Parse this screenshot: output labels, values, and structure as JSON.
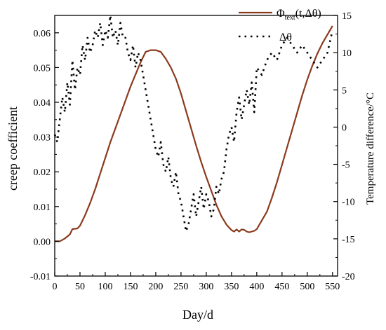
{
  "chart_data": {
    "type": "line",
    "xlabel": "Day/d",
    "ylabel": "creep coefficient",
    "ylabel_right": "Temperature difference/°C",
    "xlim": [
      0,
      560
    ],
    "ylim": [
      -0.01,
      0.065
    ],
    "ylim_right": [
      -20,
      15
    ],
    "x_ticks": [
      0,
      50,
      100,
      150,
      200,
      250,
      300,
      350,
      400,
      450,
      500,
      550
    ],
    "y_ticks": [
      -0.01,
      0.0,
      0.01,
      0.02,
      0.03,
      0.04,
      0.05,
      0.06
    ],
    "y_tick_labels": [
      "-0.01",
      "0.00",
      "0.01",
      "0.02",
      "0.03",
      "0.04",
      "0.05",
      "0.06"
    ],
    "y_right_ticks": [
      -20,
      -15,
      -10,
      -5,
      0,
      5,
      10,
      15
    ],
    "legend_position": "top-right",
    "grid": false,
    "series": [
      {
        "name": "Φ",
        "name_sub": "text",
        "name_suffix": "(t,Δθ)",
        "style": "solid",
        "color": "#8B3A1E",
        "axis": "left",
        "x": [
          0,
          10,
          20,
          30,
          35,
          45,
          50,
          55,
          60,
          70,
          80,
          90,
          100,
          110,
          120,
          130,
          140,
          150,
          160,
          170,
          180,
          190,
          200,
          210,
          220,
          230,
          240,
          250,
          260,
          270,
          280,
          290,
          300,
          310,
          320,
          330,
          340,
          350,
          355,
          360,
          365,
          370,
          375,
          380,
          385,
          390,
          395,
          400,
          410,
          420,
          430,
          440,
          450,
          460,
          470,
          480,
          490,
          500,
          510,
          520,
          530,
          540,
          550
        ],
        "y": [
          0.0,
          0.0,
          0.0008,
          0.002,
          0.0035,
          0.0037,
          0.0045,
          0.006,
          0.0075,
          0.011,
          0.015,
          0.0195,
          0.024,
          0.0285,
          0.0325,
          0.0365,
          0.0405,
          0.0445,
          0.048,
          0.0515,
          0.0545,
          0.055,
          0.055,
          0.0545,
          0.0525,
          0.05,
          0.0468,
          0.0425,
          0.0375,
          0.0325,
          0.0275,
          0.0228,
          0.0185,
          0.0145,
          0.0105,
          0.0072,
          0.0048,
          0.0032,
          0.0028,
          0.0034,
          0.0028,
          0.0034,
          0.0033,
          0.0028,
          0.0026,
          0.0028,
          0.003,
          0.0035,
          0.006,
          0.0085,
          0.0125,
          0.017,
          0.022,
          0.027,
          0.032,
          0.037,
          0.042,
          0.0465,
          0.0505,
          0.054,
          0.057,
          0.0595,
          0.062
        ]
      },
      {
        "name": "Δθ",
        "style": "dotted",
        "color": "#000000",
        "axis": "right",
        "x": [
          0,
          5,
          10,
          15,
          20,
          25,
          30,
          35,
          40,
          45,
          50,
          55,
          60,
          65,
          70,
          75,
          80,
          85,
          90,
          95,
          100,
          105,
          110,
          115,
          120,
          125,
          130,
          135,
          140,
          145,
          150,
          155,
          160,
          165,
          170,
          175,
          180,
          185,
          190,
          195,
          200,
          205,
          210,
          215,
          220,
          225,
          230,
          235,
          240,
          245,
          250,
          255,
          260,
          265,
          270,
          275,
          280,
          285,
          290,
          295,
          300,
          305,
          310,
          315,
          320,
          325,
          330,
          335,
          340,
          345,
          350,
          355,
          360,
          365,
          370,
          375,
          380,
          385,
          390,
          395,
          400,
          410,
          420,
          430,
          440,
          450,
          460,
          470,
          480,
          490,
          500,
          510,
          520,
          530,
          540,
          550
        ],
        "y": [
          -1,
          -2,
          1,
          4,
          2,
          6,
          3,
          9,
          5,
          8,
          7,
          11,
          9,
          12,
          10,
          11,
          13,
          12,
          14,
          11,
          13,
          12,
          15,
          12,
          13,
          11,
          14,
          12,
          12,
          10,
          9,
          11,
          8,
          10,
          9,
          7,
          5,
          3,
          1,
          -1,
          -3,
          -4,
          -2,
          -5,
          -6,
          -4,
          -7,
          -8,
          -6,
          -9,
          -10,
          -12,
          -14,
          -13,
          -11,
          -9,
          -12,
          -10,
          -8,
          -11,
          -9,
          -10,
          -12,
          -11,
          -8,
          -9,
          -7,
          -6,
          -3,
          -1,
          0,
          -2,
          2,
          4,
          1,
          3,
          5,
          3,
          6,
          2,
          8,
          7,
          9,
          10,
          9,
          11,
          12,
          11,
          10,
          11,
          10,
          9,
          8,
          9,
          10,
          13
        ]
      }
    ]
  }
}
